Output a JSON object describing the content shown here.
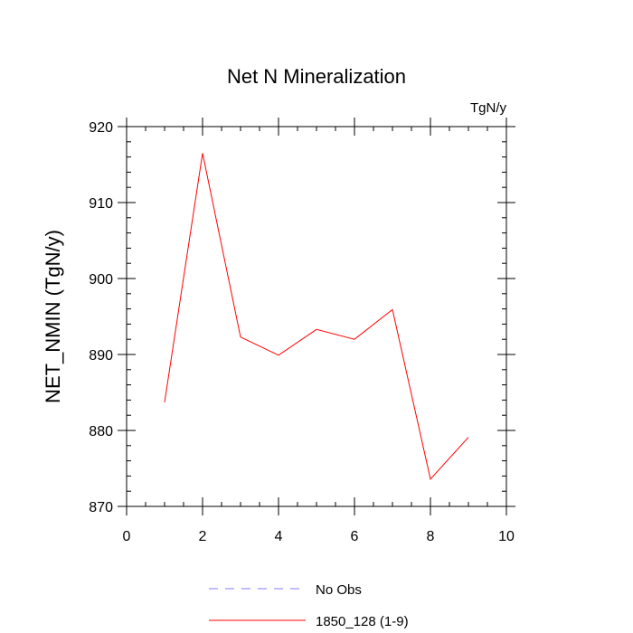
{
  "chart_data": {
    "type": "line",
    "title": "Net N Mineralization",
    "units": "TgN/y",
    "xlabel": "",
    "ylabel": "NET_NMIN  (TgN/y)",
    "xlim": [
      0,
      10
    ],
    "ylim": [
      870,
      920
    ],
    "xticks": [
      0,
      2,
      4,
      6,
      8,
      10
    ],
    "yticks": [
      870,
      880,
      890,
      900,
      910,
      920
    ],
    "x_minor_step": 0.5,
    "y_minor_step": 2,
    "grid": false,
    "legend_position": "bottom-center",
    "series": [
      {
        "name": "1850_128 (1-9)",
        "color": "#ff0000",
        "dash": "solid",
        "x": [
          1,
          2,
          3,
          4,
          5,
          6,
          7,
          8,
          9
        ],
        "y": [
          883.7,
          916.5,
          892.3,
          889.9,
          893.3,
          892.0,
          895.9,
          873.6,
          879.1
        ]
      }
    ],
    "legend": [
      {
        "label": "No Obs",
        "color": "#7f7fff",
        "dash": "dashed"
      },
      {
        "label": "1850_128 (1-9)",
        "color": "#ff0000",
        "dash": "solid"
      }
    ]
  }
}
